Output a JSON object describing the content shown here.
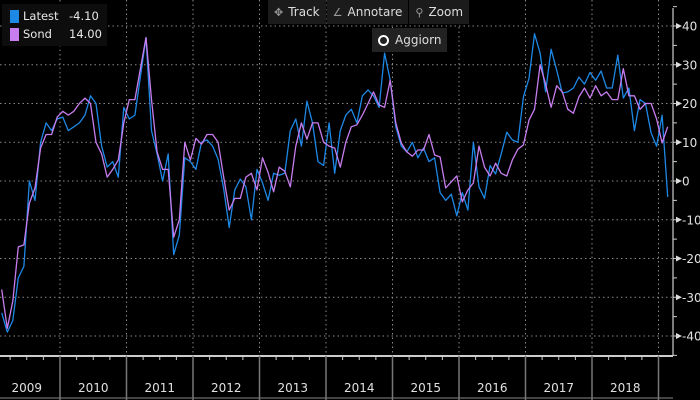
{
  "toolbar": {
    "track": "Track",
    "annotate": "Annotare",
    "zoom": "Zoom",
    "update": "Aggiorn"
  },
  "legend": [
    {
      "name": "Latest",
      "value": "-4.10",
      "color": "#1e88e5"
    },
    {
      "name": "Sond",
      "value": "14.00",
      "color": "#c77dee"
    }
  ],
  "chart_data": {
    "type": "line",
    "x_start": "2009-02",
    "x_frequency": "monthly",
    "x_tick_labels": [
      "2009",
      "2010",
      "2011",
      "2012",
      "2013",
      "2014",
      "2015",
      "2016",
      "2017",
      "2018"
    ],
    "y_tick_labels": [
      "40",
      "30",
      "20",
      "10",
      "0",
      "-10",
      "-20",
      "-30",
      "-40"
    ],
    "y_ticks": [
      40,
      30,
      20,
      10,
      0,
      -10,
      -20,
      -30,
      -40
    ],
    "ylim": [
      -40,
      40
    ],
    "grid": true,
    "legend_position": "top-left",
    "series": [
      {
        "name": "Latest",
        "color": "#1e88e5",
        "values": [
          -34,
          -39,
          -36,
          -25,
          -22,
          0,
          -5,
          10,
          15,
          13,
          16,
          16.5,
          13,
          14,
          15,
          17,
          22,
          20,
          9,
          3.6,
          5,
          1,
          19,
          16,
          17,
          27,
          37,
          13,
          7,
          0,
          7,
          -19,
          -14,
          6,
          5,
          3,
          10,
          10.6,
          9,
          5.6,
          -2,
          -12,
          -2.3,
          0.5,
          -1.5,
          -10,
          3,
          -0.5,
          -5,
          2,
          1.5,
          2,
          13,
          16,
          9,
          20.6,
          15,
          5,
          4,
          15,
          2,
          13,
          17,
          18.5,
          15,
          22,
          23.5,
          22,
          19,
          33,
          26,
          14,
          9,
          7.5,
          10,
          6,
          8.5,
          5,
          6,
          -3,
          -5,
          -3.4,
          -9,
          -3,
          -7.5,
          10,
          -1.5,
          -4.5,
          4,
          1.8,
          7,
          12.6,
          10.6,
          10,
          21.7,
          26.5,
          38,
          33,
          23,
          34,
          28.6,
          22.7,
          23,
          24,
          26.8,
          25,
          28,
          26,
          28.4,
          24,
          24,
          32.5,
          21.4,
          24,
          13,
          21,
          20,
          12.4,
          9,
          17,
          -4.1
        ]
      },
      {
        "name": "Sond",
        "color": "#c77dee",
        "values": [
          -28,
          -38,
          -31,
          -17,
          -16.5,
          -5.7,
          -1.8,
          8.5,
          12,
          12,
          16.5,
          18,
          17,
          18,
          20,
          21.4,
          20,
          10,
          7,
          1,
          3,
          5.4,
          15,
          21,
          21,
          29,
          37,
          21,
          7.5,
          3,
          3,
          -14.5,
          -10,
          10,
          5.4,
          11,
          9.5,
          12,
          12,
          10,
          1,
          -7.5,
          -4.5,
          -4.5,
          1,
          2,
          -2.3,
          6,
          2.2,
          -2.8,
          3.6,
          2.5,
          -1.5,
          9,
          15,
          10.8,
          15,
          15,
          10,
          9,
          8.5,
          3.6,
          10,
          14,
          14.5,
          17,
          20,
          23,
          19.6,
          19,
          26,
          15,
          9.8,
          7.5,
          6.4,
          8,
          8,
          12,
          6.7,
          6.2,
          -1.8,
          -0.2,
          1.3,
          -5.4,
          -2.3,
          -0.5,
          9,
          3.6,
          1.3,
          4.6,
          2,
          1.3,
          5.4,
          8.2,
          9.3,
          15.7,
          18.5,
          30,
          25,
          19,
          24.6,
          23,
          18.5,
          17.5,
          21.7,
          24,
          21.4,
          24.6,
          22,
          23,
          21,
          21,
          29,
          22,
          22,
          18.5,
          20,
          20,
          16,
          9.8,
          14
        ]
      }
    ]
  }
}
